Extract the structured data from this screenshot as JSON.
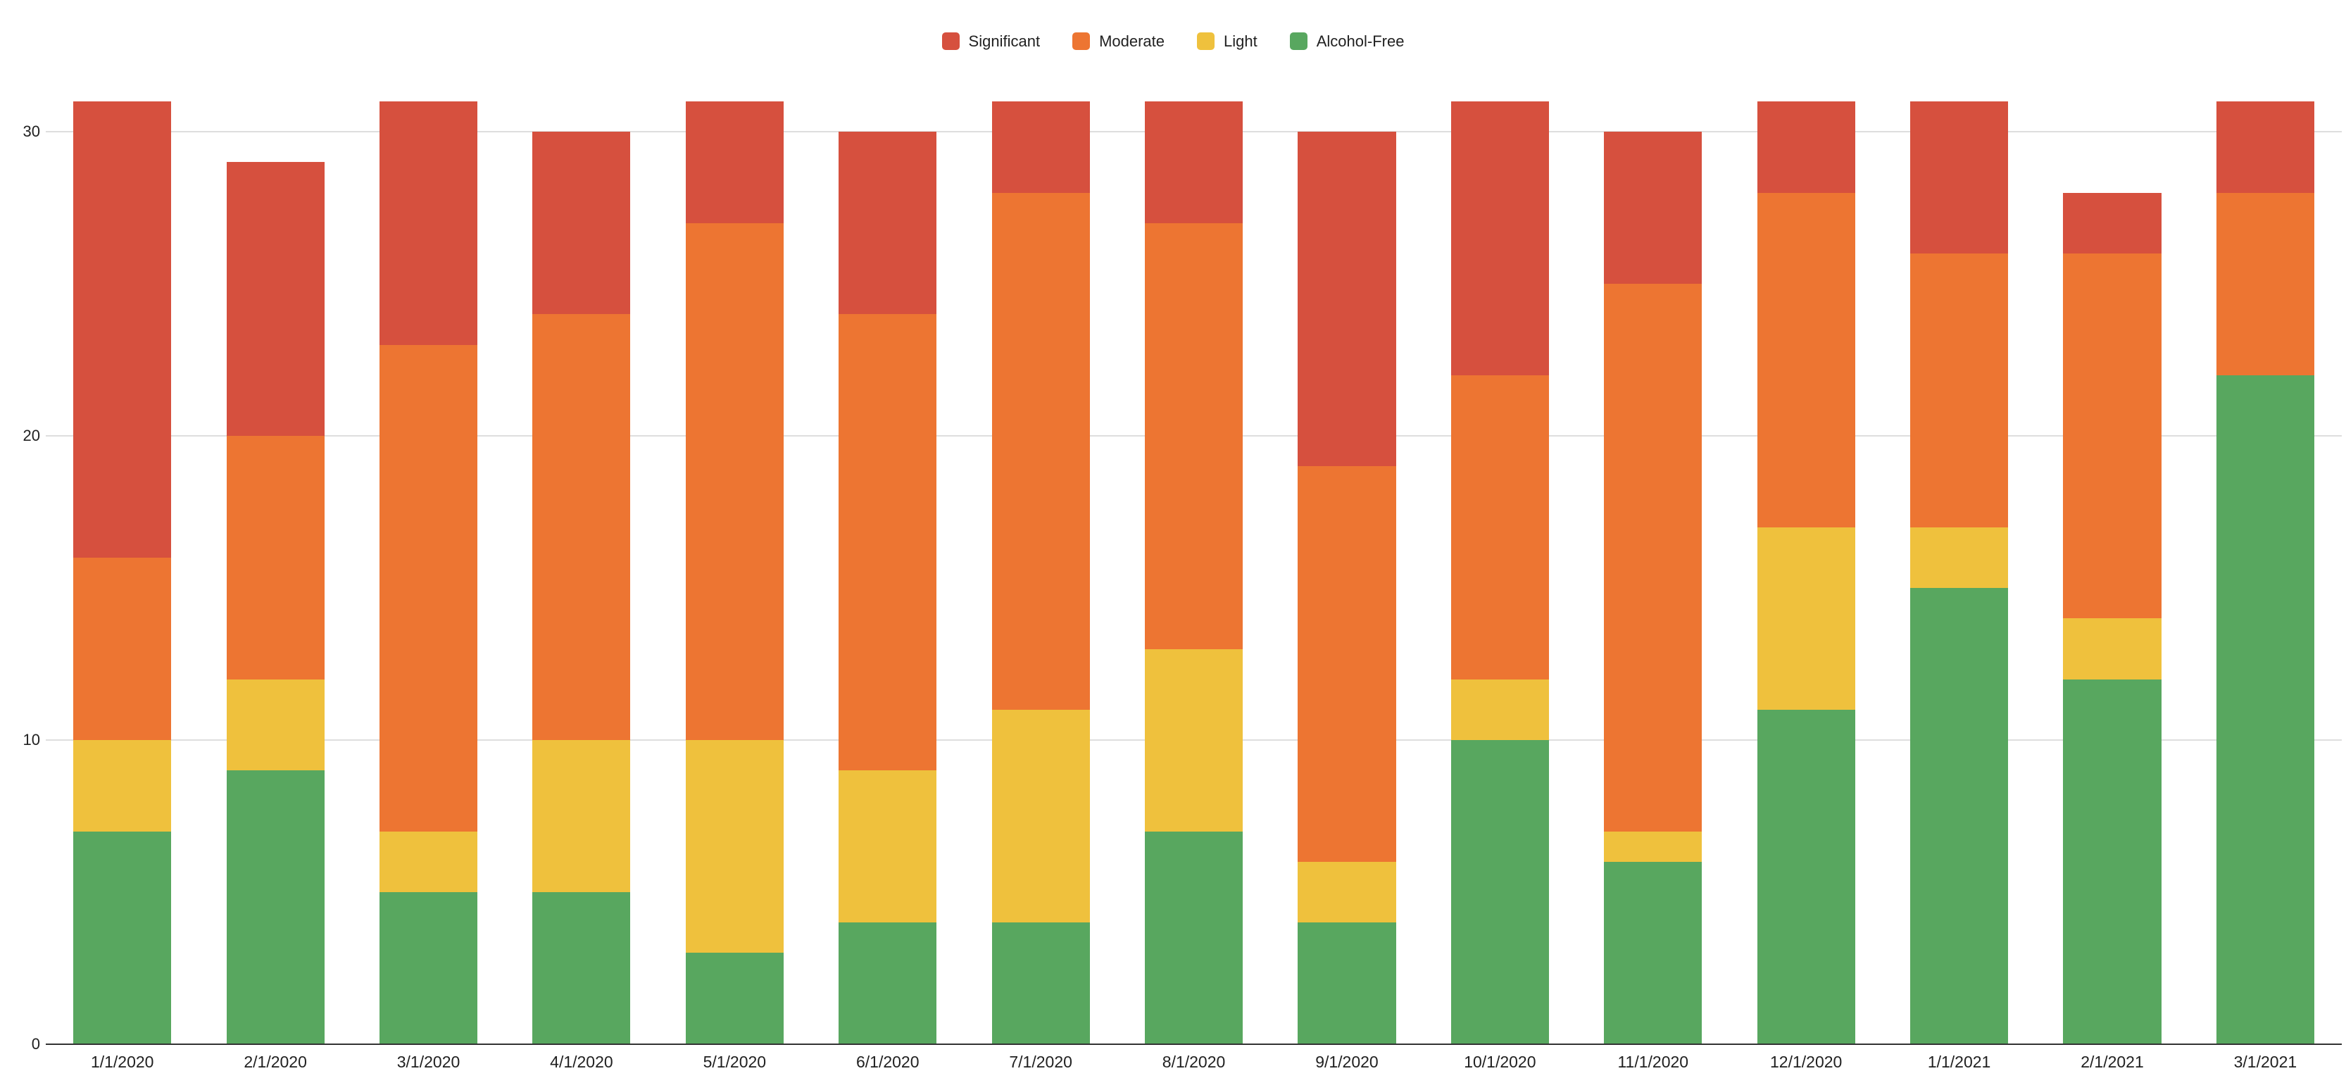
{
  "legend": {
    "items": [
      {
        "label": "Significant",
        "color": "#d6503e"
      },
      {
        "label": "Moderate",
        "color": "#ed7532"
      },
      {
        "label": "Light",
        "color": "#efc13d"
      },
      {
        "label": "Alcohol-Free",
        "color": "#58a75f"
      }
    ]
  },
  "y_axis": {
    "tick_labels": [
      "0",
      "10",
      "20",
      "30"
    ]
  },
  "chart_data": {
    "type": "bar",
    "stacked": true,
    "title": "",
    "xlabel": "",
    "ylabel": "",
    "ylim": [
      0,
      31
    ],
    "y_ticks": [
      0,
      10,
      20,
      30
    ],
    "grid": true,
    "legend_position": "top-center",
    "categories": [
      "1/1/2020",
      "2/1/2020",
      "3/1/2020",
      "4/1/2020",
      "5/1/2020",
      "6/1/2020",
      "7/1/2020",
      "8/1/2020",
      "9/1/2020",
      "10/1/2020",
      "11/1/2020",
      "12/1/2020",
      "1/1/2021",
      "2/1/2021",
      "3/1/2021"
    ],
    "series": [
      {
        "name": "Significant",
        "color": "#d6503e",
        "values": [
          15,
          9,
          8,
          6,
          4,
          6,
          3,
          4,
          11,
          9,
          5,
          3,
          5,
          2,
          3
        ]
      },
      {
        "name": "Moderate",
        "color": "#ed7532",
        "values": [
          6,
          8,
          16,
          14,
          17,
          15,
          17,
          14,
          13,
          10,
          18,
          11,
          9,
          12,
          6
        ]
      },
      {
        "name": "Light",
        "color": "#efc13d",
        "values": [
          3,
          3,
          2,
          5,
          7,
          5,
          7,
          6,
          2,
          2,
          1,
          6,
          2,
          2,
          0
        ]
      },
      {
        "name": "Alcohol-Free",
        "color": "#58a75f",
        "values": [
          7,
          9,
          5,
          5,
          3,
          4,
          4,
          7,
          4,
          10,
          6,
          11,
          15,
          12,
          22
        ]
      }
    ],
    "totals": [
      31,
      29,
      31,
      30,
      31,
      30,
      31,
      31,
      30,
      31,
      30,
      31,
      31,
      28,
      31
    ],
    "gridline_color": "#dedede",
    "baseline_color": "#333333",
    "background_color": "#ffffff"
  }
}
